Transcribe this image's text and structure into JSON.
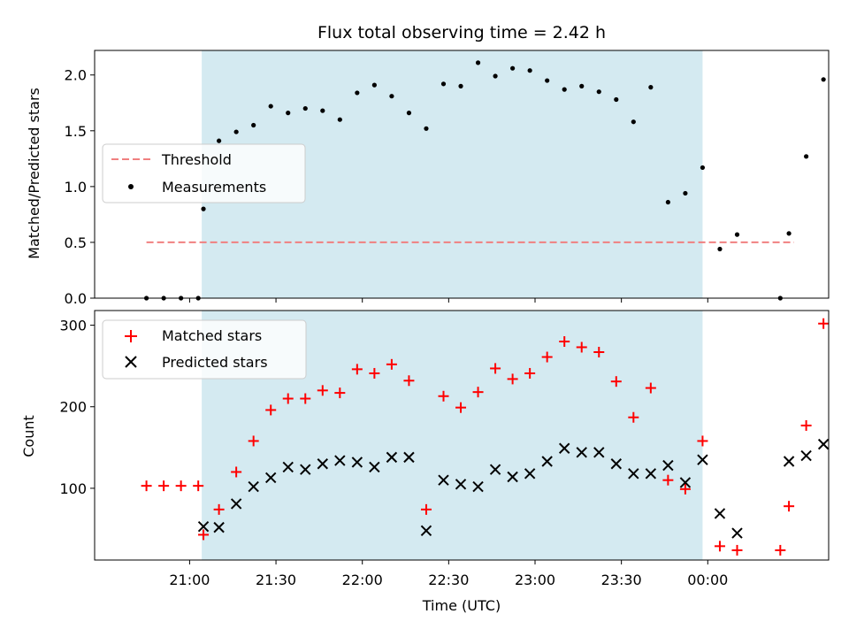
{
  "colors": {
    "span": "#d4eaf1",
    "threshold": "#f08080",
    "matched": "#ff0000",
    "predicted": "#000000",
    "measurement": "#000000"
  },
  "chart_data": [
    {
      "type": "scatter",
      "title": "Flux total observing time = 2.42 h",
      "ylabel": "Matched/Predicted stars",
      "ylim": [
        0,
        2.22
      ],
      "yticks": [
        "0.0",
        "0.5",
        "1.0",
        "1.5",
        "2.0"
      ],
      "ytick_values": [
        0,
        0.5,
        1.0,
        1.5,
        2.0
      ],
      "xlim_hours": [
        20.45,
        24.7
      ],
      "observing_span_hours": [
        21.07,
        23.97
      ],
      "legend_position": "center-left",
      "threshold": {
        "name": "Threshold",
        "y": 0.5,
        "x_range_hours": [
          20.75,
          24.5
        ]
      },
      "series": [
        {
          "name": "Measurements",
          "x_hours": [
            20.75,
            20.85,
            20.95,
            21.05,
            21.08,
            21.17,
            21.27,
            21.37,
            21.47,
            21.57,
            21.67,
            21.77,
            21.87,
            21.97,
            22.07,
            22.17,
            22.27,
            22.37,
            22.47,
            22.57,
            22.67,
            22.77,
            22.87,
            22.97,
            23.07,
            23.17,
            23.27,
            23.37,
            23.47,
            23.57,
            23.67,
            23.77,
            23.87,
            23.97,
            24.07,
            24.17,
            24.42,
            24.47,
            24.57,
            24.67
          ],
          "values": [
            0,
            0,
            0,
            0,
            0.8,
            1.41,
            1.49,
            1.55,
            1.72,
            1.66,
            1.7,
            1.68,
            1.6,
            1.84,
            1.91,
            1.81,
            1.66,
            1.52,
            1.92,
            1.9,
            2.11,
            1.99,
            2.06,
            2.04,
            1.95,
            1.87,
            1.9,
            1.85,
            1.78,
            1.58,
            1.89,
            0.86,
            0.94,
            1.17,
            0.44,
            0.57,
            0,
            0.58,
            1.27,
            1.96
          ]
        }
      ]
    },
    {
      "type": "scatter",
      "xlabel": "Time (UTC)",
      "ylabel": "Count",
      "ylim": [
        12,
        318
      ],
      "yticks": [
        "100",
        "200",
        "300"
      ],
      "ytick_values": [
        100,
        200,
        300
      ],
      "xticks": [
        "21:00",
        "21:30",
        "22:00",
        "22:30",
        "23:00",
        "23:30",
        "00:00"
      ],
      "xtick_hours": [
        21.0,
        21.5,
        22.0,
        22.5,
        23.0,
        23.5,
        24.0
      ],
      "xlim_hours": [
        20.45,
        24.7
      ],
      "observing_span_hours": [
        21.07,
        23.97
      ],
      "legend_position": "top-left",
      "series": [
        {
          "name": "Matched stars",
          "marker": "plus",
          "x_hours": [
            20.75,
            20.85,
            20.95,
            21.05,
            21.08,
            21.17,
            21.27,
            21.37,
            21.47,
            21.57,
            21.67,
            21.77,
            21.87,
            21.97,
            22.07,
            22.17,
            22.27,
            22.37,
            22.47,
            22.57,
            22.67,
            22.77,
            22.87,
            22.97,
            23.07,
            23.17,
            23.27,
            23.37,
            23.47,
            23.57,
            23.67,
            23.77,
            23.87,
            23.97,
            24.07,
            24.17,
            24.42,
            24.47,
            24.57,
            24.67
          ],
          "values": [
            103,
            103,
            103,
            103,
            43,
            74,
            120,
            158,
            196,
            210,
            210,
            220,
            217,
            246,
            241,
            252,
            232,
            74,
            213,
            199,
            218,
            247,
            234,
            241,
            261,
            280,
            273,
            267,
            231,
            187,
            223,
            110,
            99,
            158,
            29,
            24,
            24,
            78,
            177,
            302
          ]
        },
        {
          "name": "Predicted stars",
          "marker": "x",
          "x_hours": [
            21.08,
            21.17,
            21.27,
            21.37,
            21.47,
            21.57,
            21.67,
            21.77,
            21.87,
            21.97,
            22.07,
            22.17,
            22.27,
            22.37,
            22.47,
            22.57,
            22.67,
            22.77,
            22.87,
            22.97,
            23.07,
            23.17,
            23.27,
            23.37,
            23.47,
            23.57,
            23.67,
            23.77,
            23.87,
            23.97,
            24.07,
            24.17,
            24.47,
            24.57,
            24.67
          ],
          "values": [
            53,
            52,
            81,
            102,
            113,
            126,
            123,
            130,
            134,
            132,
            126,
            138,
            138,
            48,
            110,
            105,
            102,
            123,
            114,
            118,
            133,
            149,
            144,
            144,
            130,
            118,
            118,
            128,
            107,
            135,
            69,
            45,
            133,
            140,
            154
          ]
        }
      ]
    }
  ]
}
